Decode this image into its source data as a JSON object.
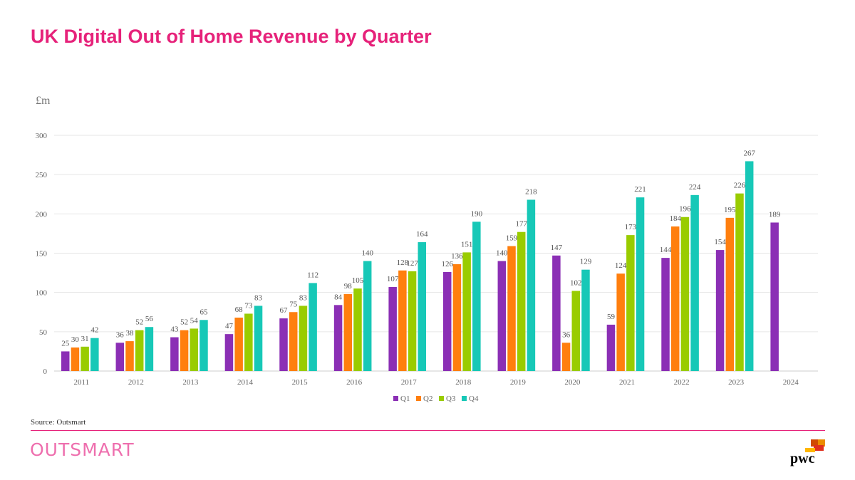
{
  "page": {
    "title": "UK Digital Out of Home Revenue by Quarter"
  },
  "footer": {
    "source": "Source: Outsmart",
    "brand_left": "OUTSMART",
    "brand_right": "pwc"
  },
  "colors": {
    "accent": "#e6227a",
    "Q1": "#8b2fb5",
    "Q2": "#ff7f0e",
    "Q3": "#99cc00",
    "Q4": "#17c8b7"
  },
  "chart_data": {
    "type": "bar",
    "ylabel": "£m",
    "ylim": [
      0,
      300
    ],
    "yticks": [
      "0",
      "50",
      "100",
      "150",
      "200",
      "250",
      "300"
    ],
    "categories": [
      "2011",
      "2012",
      "2013",
      "2014",
      "2015",
      "2016",
      "2017",
      "2018",
      "2019",
      "2020",
      "2021",
      "2022",
      "2023",
      "2024"
    ],
    "series": [
      {
        "name": "Q1",
        "values": [
          25,
          36,
          43,
          47,
          67,
          84,
          107,
          126,
          140,
          147,
          59,
          144,
          154,
          189
        ]
      },
      {
        "name": "Q2",
        "values": [
          30,
          38,
          52,
          68,
          75,
          98,
          128,
          136,
          159,
          36,
          124,
          184,
          195,
          null
        ]
      },
      {
        "name": "Q3",
        "values": [
          31,
          52,
          54,
          73,
          83,
          105,
          127,
          151,
          177,
          102,
          173,
          196,
          226,
          null
        ]
      },
      {
        "name": "Q4",
        "values": [
          42,
          56,
          65,
          83,
          112,
          140,
          164,
          190,
          218,
          129,
          221,
          224,
          267,
          null
        ]
      }
    ],
    "grid": true,
    "legend": "bottom"
  }
}
